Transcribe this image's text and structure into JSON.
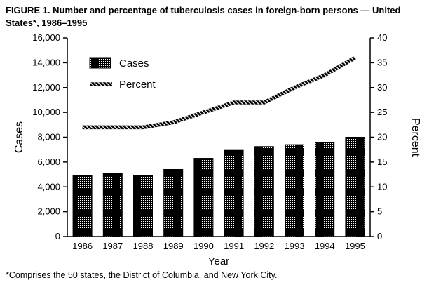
{
  "title": "FIGURE 1. Number and percentage of tuberculosis cases in foreign-born persons — United States*, 1986–1995",
  "footnote": "*Comprises the 50 states, the District of Columbia, and New York City.",
  "chart_data": {
    "type": "bar+line",
    "categories": [
      "1986",
      "1987",
      "1988",
      "1989",
      "1990",
      "1991",
      "1992",
      "1993",
      "1994",
      "1995"
    ],
    "series": [
      {
        "name": "Cases",
        "type": "bar",
        "axis": "left",
        "values": [
          4900,
          5100,
          4900,
          5400,
          6300,
          7000,
          7250,
          7400,
          7600,
          8000
        ]
      },
      {
        "name": "Percent",
        "type": "line",
        "axis": "right",
        "values": [
          22,
          22,
          22,
          23,
          25,
          27,
          27,
          30,
          32.5,
          36
        ]
      }
    ],
    "xlabel": "Year",
    "ylabel_left": "Cases",
    "ylabel_right": "Percent",
    "ylim_left": [
      0,
      16000
    ],
    "ytick_step_left": 2000,
    "ylim_right": [
      0,
      40
    ],
    "ytick_step_right": 5,
    "legend": {
      "position": "top-left-inside",
      "entries": [
        "Cases",
        "Percent"
      ]
    },
    "grid": false,
    "colors": {
      "bar": "#000000",
      "line": "#000000",
      "text": "#000000",
      "background": "#ffffff"
    }
  }
}
